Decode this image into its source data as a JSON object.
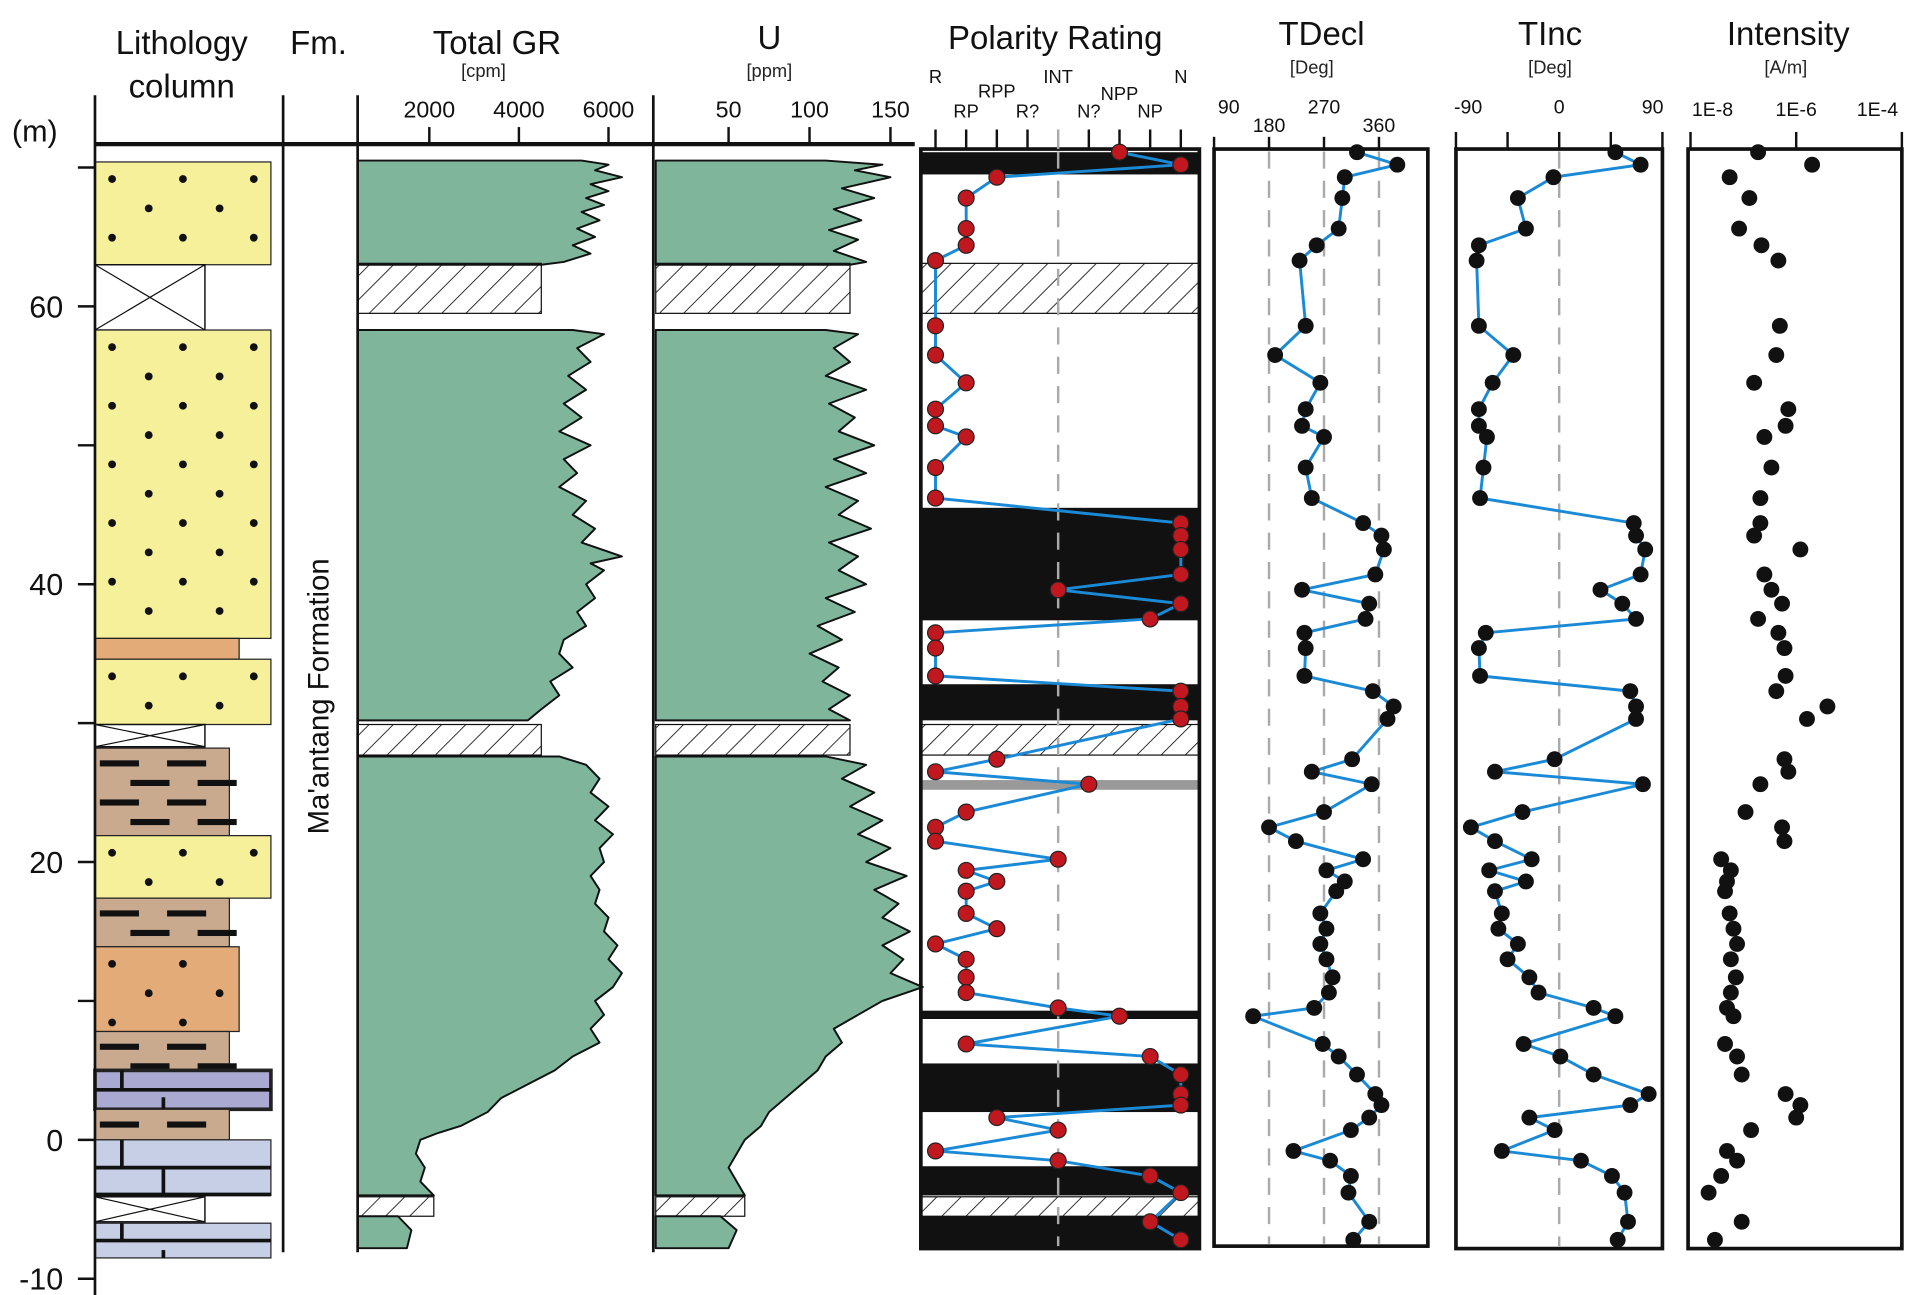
{
  "depth_axis": {
    "unit": "(m)",
    "ticks": [
      70,
      60,
      50,
      40,
      30,
      20,
      10,
      0,
      -10
    ],
    "labels": [
      "60",
      "40",
      "20",
      "0",
      "-10"
    ],
    "label_values": [
      60,
      40,
      20,
      0,
      -10
    ],
    "range": [
      -10,
      71
    ]
  },
  "columns": {
    "lithology": {
      "title_1": "Lithology",
      "title_2": "column"
    },
    "formation": {
      "title": "Fm.",
      "name": "Ma'antang Formation"
    },
    "gr": {
      "title": "Total GR",
      "unit": "[cpm]",
      "ticks": [
        "2000",
        "4000",
        "6000"
      ],
      "tick_values": [
        2000,
        4000,
        6000
      ],
      "range": [
        400,
        7000
      ]
    },
    "u": {
      "title": "U",
      "unit": "[ppm]",
      "ticks": [
        "50",
        "100",
        "150"
      ],
      "tick_values": [
        50,
        100,
        150
      ],
      "range": [
        5,
        165
      ]
    },
    "polarity": {
      "title": "Polarity Rating",
      "categories": [
        "R",
        "RP",
        "RPP",
        "R?",
        "INT",
        "N?",
        "NPP",
        "NP",
        "N"
      ]
    },
    "tdecl": {
      "title": "TDecl",
      "unit": "[Deg]",
      "ticks": [
        "90",
        "180",
        "270",
        "360"
      ],
      "tick_values": [
        90,
        180,
        270,
        360
      ],
      "range": [
        90,
        440
      ]
    },
    "tinc": {
      "title": "TInc",
      "unit": "[Deg]",
      "ticks": [
        "-90",
        "0",
        "90"
      ],
      "tick_values": [
        -90,
        0,
        90
      ],
      "range": [
        -90,
        90
      ]
    },
    "intensity": {
      "title": "Intensity",
      "unit": "[A/m]",
      "ticks": [
        "1E-8",
        "1E-6",
        "1E-4"
      ],
      "tick_values": [
        1e-08,
        1e-06,
        0.0001
      ],
      "range": [
        1e-08,
        0.0001
      ],
      "scale": "log"
    }
  },
  "colors": {
    "sandstone": "#f6f09a",
    "silty_sandstone": "#e3ab78",
    "mudstone": "#c9aa8e",
    "limestone_dark": "#a9a9d2",
    "limestone": "#c6cfe6",
    "gr_fill": "#7fb59a",
    "line": "#1a8ad6",
    "polarity_dot": "#c1181f",
    "normal_bar": "#111111",
    "transition_bar": "#999999"
  },
  "chart_data": {
    "type": "stratigraphic-log",
    "lithology": [
      {
        "type": "sandstone",
        "top": 70.4,
        "base": 63.0
      },
      {
        "type": "covered",
        "top": 63.0,
        "base": 58.3
      },
      {
        "type": "sandstone",
        "top": 58.3,
        "base": 36.1
      },
      {
        "type": "silty_sandstone",
        "top": 36.1,
        "base": 34.6
      },
      {
        "type": "sandstone",
        "top": 34.6,
        "base": 29.9
      },
      {
        "type": "covered",
        "top": 29.9,
        "base": 28.3
      },
      {
        "type": "mudstone",
        "top": 28.2,
        "base": 21.9
      },
      {
        "type": "sandstone",
        "top": 21.9,
        "base": 17.4
      },
      {
        "type": "mudstone",
        "top": 17.4,
        "base": 13.9
      },
      {
        "type": "silty_sandstone",
        "top": 13.9,
        "base": 7.8
      },
      {
        "type": "mudstone",
        "top": 7.8,
        "base": 5.0
      },
      {
        "type": "limestone_dark",
        "top": 5.0,
        "base": 2.2
      },
      {
        "type": "mudstone",
        "top": 2.2,
        "base": 0.0
      },
      {
        "type": "limestone",
        "top": 0.0,
        "base": -4.0
      },
      {
        "type": "covered",
        "top": -4.1,
        "base": -5.9
      },
      {
        "type": "limestone",
        "top": -6.0,
        "base": -8.5
      }
    ],
    "gaps": [
      [
        63.1,
        59.5
      ],
      [
        29.9,
        27.7
      ],
      [
        -4.1,
        -5.5
      ]
    ],
    "gr_segments": [
      [
        [
          70.5,
          5400
        ],
        [
          70.2,
          6000
        ],
        [
          69.8,
          5700
        ],
        [
          69.3,
          6300
        ],
        [
          68.8,
          5600
        ],
        [
          68.3,
          6000
        ],
        [
          67.8,
          5500
        ],
        [
          67.3,
          5900
        ],
        [
          66.8,
          5400
        ],
        [
          66.2,
          5800
        ],
        [
          65.6,
          5300
        ],
        [
          65.0,
          5700
        ],
        [
          64.4,
          5200
        ],
        [
          63.8,
          5600
        ],
        [
          63.2,
          5000
        ],
        [
          63.0,
          4500
        ]
      ],
      [
        [
          58.3,
          5200
        ],
        [
          58.0,
          5900
        ],
        [
          57.0,
          5300
        ],
        [
          56.0,
          5600
        ],
        [
          55.0,
          5100
        ],
        [
          54.0,
          5500
        ],
        [
          53.0,
          5000
        ],
        [
          52.0,
          5400
        ],
        [
          51.0,
          4900
        ],
        [
          50.0,
          5600
        ],
        [
          49.0,
          5000
        ],
        [
          48.0,
          5300
        ],
        [
          47.0,
          4900
        ],
        [
          46.0,
          5500
        ],
        [
          45.0,
          5200
        ],
        [
          44.0,
          5700
        ],
        [
          43.0,
          5400
        ],
        [
          42.0,
          6300
        ],
        [
          41.5,
          5600
        ],
        [
          41.0,
          5900
        ],
        [
          40.0,
          5500
        ],
        [
          39.0,
          5700
        ],
        [
          38.0,
          5300
        ],
        [
          37.0,
          5500
        ],
        [
          36.0,
          5000
        ],
        [
          35.0,
          4900
        ],
        [
          34.0,
          5200
        ],
        [
          33.0,
          4700
        ],
        [
          32.0,
          4900
        ],
        [
          31.0,
          4500
        ],
        [
          30.2,
          4200
        ]
      ],
      [
        [
          27.6,
          4900
        ],
        [
          27.0,
          5500
        ],
        [
          26.0,
          5800
        ],
        [
          25.0,
          5600
        ],
        [
          24.0,
          6000
        ],
        [
          23.0,
          5700
        ],
        [
          22.0,
          6100
        ],
        [
          21.0,
          5800
        ],
        [
          20.0,
          5900
        ],
        [
          19.0,
          5600
        ],
        [
          18.0,
          5800
        ],
        [
          17.0,
          5700
        ],
        [
          16.0,
          6000
        ],
        [
          15.0,
          5900
        ],
        [
          14.0,
          6200
        ],
        [
          13.0,
          6000
        ],
        [
          12.0,
          6300
        ],
        [
          11.0,
          6100
        ],
        [
          10.0,
          5700
        ],
        [
          9.0,
          5900
        ],
        [
          8.0,
          5600
        ],
        [
          7.0,
          5800
        ],
        [
          6.0,
          5200
        ],
        [
          5.0,
          4800
        ],
        [
          4.0,
          4200
        ],
        [
          3.0,
          3600
        ],
        [
          2.0,
          3300
        ],
        [
          1.0,
          2700
        ],
        [
          0.5,
          2200
        ],
        [
          0.0,
          1800
        ],
        [
          -1.0,
          1700
        ],
        [
          -2.0,
          1900
        ],
        [
          -3.0,
          1800
        ],
        [
          -4.0,
          2100
        ]
      ],
      [
        [
          -5.5,
          1300
        ],
        [
          -6.5,
          1600
        ],
        [
          -7.8,
          1500
        ]
      ]
    ],
    "gr_gap_values": [
      4500,
      4500,
      2100
    ],
    "u_segments": [
      [
        [
          70.5,
          110
        ],
        [
          70.2,
          145
        ],
        [
          69.8,
          128
        ],
        [
          69.3,
          150
        ],
        [
          68.5,
          120
        ],
        [
          67.8,
          140
        ],
        [
          67.0,
          115
        ],
        [
          66.2,
          132
        ],
        [
          65.5,
          112
        ],
        [
          64.8,
          130
        ],
        [
          64.0,
          115
        ],
        [
          63.2,
          135
        ],
        [
          63.0,
          125
        ]
      ],
      [
        [
          58.3,
          110
        ],
        [
          58.0,
          130
        ],
        [
          57.0,
          115
        ],
        [
          56.0,
          125
        ],
        [
          55.0,
          110
        ],
        [
          54.0,
          135
        ],
        [
          53.0,
          112
        ],
        [
          52.0,
          128
        ],
        [
          51.0,
          118
        ],
        [
          50.0,
          140
        ],
        [
          49.0,
          115
        ],
        [
          48.0,
          135
        ],
        [
          47.0,
          110
        ],
        [
          46.0,
          130
        ],
        [
          45.0,
          118
        ],
        [
          44.0,
          138
        ],
        [
          43.0,
          112
        ],
        [
          42.0,
          130
        ],
        [
          41.0,
          118
        ],
        [
          40.0,
          135
        ],
        [
          39.0,
          110
        ],
        [
          38.0,
          128
        ],
        [
          37.0,
          105
        ],
        [
          36.0,
          120
        ],
        [
          35.0,
          100
        ],
        [
          34.0,
          118
        ],
        [
          33.0,
          108
        ],
        [
          32.0,
          125
        ],
        [
          31.0,
          112
        ],
        [
          30.2,
          125
        ]
      ],
      [
        [
          27.6,
          110
        ],
        [
          27.0,
          135
        ],
        [
          26.0,
          120
        ],
        [
          25.0,
          140
        ],
        [
          24.0,
          125
        ],
        [
          23.0,
          145
        ],
        [
          22.0,
          130
        ],
        [
          21.0,
          150
        ],
        [
          20.0,
          135
        ],
        [
          19.0,
          160
        ],
        [
          18.0,
          140
        ],
        [
          17.0,
          155
        ],
        [
          16.0,
          145
        ],
        [
          15.0,
          162
        ],
        [
          14.0,
          145
        ],
        [
          13.0,
          158
        ],
        [
          12.0,
          150
        ],
        [
          11.0,
          170
        ],
        [
          10.0,
          145
        ],
        [
          9.0,
          130
        ],
        [
          8.0,
          115
        ],
        [
          7.0,
          120
        ],
        [
          6.0,
          110
        ],
        [
          5.0,
          105
        ],
        [
          4.0,
          95
        ],
        [
          3.0,
          85
        ],
        [
          2.0,
          75
        ],
        [
          1.0,
          70
        ],
        [
          0.0,
          60
        ],
        [
          -1.0,
          55
        ],
        [
          -2.0,
          50
        ],
        [
          -3.0,
          55
        ],
        [
          -4.0,
          60
        ]
      ],
      [
        [
          -5.5,
          45
        ],
        [
          -6.5,
          55
        ],
        [
          -7.8,
          50
        ]
      ]
    ],
    "u_gap_values": [
      125,
      125,
      60
    ],
    "polarity_normal_intervals": [
      [
        71.1,
        69.5
      ],
      [
        45.5,
        37.4
      ],
      [
        32.8,
        30.2
      ],
      [
        9.3,
        8.7
      ],
      [
        5.5,
        2.0
      ],
      [
        -1.9,
        -4.0
      ],
      [
        -5.5,
        -7.8
      ]
    ],
    "polarity_transition_intervals": [
      [
        25.9,
        25.2
      ]
    ],
    "sample_columns": [
      "depth_m",
      "polarity",
      "tdecl_deg",
      "tinc_deg",
      "intensity_A_per_m"
    ],
    "samples": [
      [
        71.1,
        "NPP",
        324,
        49,
        1.9e-07
      ],
      [
        70.2,
        "N",
        390,
        71,
        2e-06
      ],
      [
        69.3,
        "RPP",
        304,
        -5,
        5.5e-08
      ],
      [
        67.8,
        "RP",
        300,
        -36,
        1.3e-07
      ],
      [
        65.6,
        "RP",
        294,
        -29,
        8.3e-08
      ],
      [
        64.4,
        "RP",
        258,
        -70,
        2.2e-07
      ],
      [
        63.3,
        "R",
        230,
        -72,
        4.6e-07
      ],
      [
        58.6,
        "R",
        240,
        -70,
        4.9e-07
      ],
      [
        56.5,
        "R",
        190,
        -40,
        4.2e-07
      ],
      [
        54.5,
        "RP",
        264,
        -58,
        1.6e-07
      ],
      [
        52.6,
        "R",
        240,
        -70,
        7.1e-07
      ],
      [
        51.4,
        "R",
        234,
        -70,
        6.3e-07
      ],
      [
        50.6,
        "RP",
        270,
        -63,
        2.5e-07
      ],
      [
        48.4,
        "R",
        240,
        -66,
        3.4e-07
      ],
      [
        46.2,
        "R",
        250,
        -69,
        2.1e-07
      ],
      [
        44.4,
        "N",
        334,
        65,
        2.1e-07
      ],
      [
        43.5,
        "N",
        364,
        67,
        1.6e-07
      ],
      [
        42.5,
        "N",
        368,
        75,
        1.2e-06
      ],
      [
        40.7,
        "N",
        354,
        71,
        2.5e-07
      ],
      [
        39.6,
        "INT",
        234,
        36,
        3.4e-07
      ],
      [
        38.6,
        "N",
        344,
        55,
        5.4e-07
      ],
      [
        37.5,
        "NP",
        338,
        67,
        1.9e-07
      ],
      [
        36.5,
        "R",
        238,
        -64,
        4.6e-07
      ],
      [
        35.4,
        "R",
        240,
        -70,
        6e-07
      ],
      [
        33.4,
        "R",
        238,
        -69,
        6.3e-07
      ],
      [
        32.3,
        "N",
        350,
        62,
        4.2e-07
      ],
      [
        31.2,
        "N",
        384,
        67,
        3.9e-06
      ],
      [
        30.3,
        "N",
        374,
        67,
        1.6e-06
      ],
      [
        27.4,
        "RPP",
        316,
        -4,
        6e-07
      ],
      [
        26.5,
        "R",
        250,
        -56,
        7.1e-07
      ],
      [
        25.6,
        "N?",
        348,
        73,
        2.1e-07
      ],
      [
        23.6,
        "RP",
        270,
        -32,
        1.1e-07
      ],
      [
        22.5,
        "R",
        180,
        -77,
        5.4e-07
      ],
      [
        21.5,
        "R",
        224,
        -56,
        6e-07
      ],
      [
        20.2,
        "INT",
        334,
        -24,
        3.8e-08
      ],
      [
        19.4,
        "RP",
        274,
        -61,
        5.8e-08
      ],
      [
        18.6,
        "RPP",
        304,
        -29,
        4.9e-08
      ],
      [
        17.9,
        "RP",
        290,
        -56,
        4.5e-08
      ],
      [
        16.3,
        "RP",
        264,
        -50,
        5.5e-08
      ],
      [
        15.2,
        "RPP",
        274,
        -53,
        6.5e-08
      ],
      [
        14.1,
        "R",
        264,
        -36,
        7.6e-08
      ],
      [
        13.0,
        "RP",
        274,
        -45,
        5.8e-08
      ],
      [
        11.7,
        "RP",
        284,
        -26,
        7.2e-08
      ],
      [
        10.6,
        "RP",
        278,
        -18,
        5.8e-08
      ],
      [
        9.5,
        "INT",
        254,
        30,
        4.9e-08
      ],
      [
        8.9,
        "NPP",
        154,
        49,
        6.5e-08
      ],
      [
        6.9,
        "RP",
        268,
        -31,
        4.5e-08
      ],
      [
        6.0,
        "NP",
        294,
        1,
        7.6e-08
      ],
      [
        4.7,
        "N",
        324,
        30,
        9.3e-08
      ],
      [
        3.3,
        "N",
        354,
        78,
        6.3e-07
      ],
      [
        2.5,
        "N",
        364,
        62,
        1.2e-06
      ],
      [
        1.6,
        "RPP",
        344,
        -26,
        1e-06
      ],
      [
        0.7,
        "INT",
        314,
        -4,
        1.4e-07
      ],
      [
        -0.8,
        "R",
        220,
        -50,
        4.9e-08
      ],
      [
        -1.5,
        "INT",
        280,
        19,
        7.6e-08
      ],
      [
        -2.6,
        "NP",
        314,
        46,
        3.8e-08
      ],
      [
        -3.8,
        "N",
        310,
        57,
        2.2e-08
      ],
      [
        -5.9,
        "NP",
        344,
        60,
        9.3e-08
      ],
      [
        -7.2,
        "N",
        318,
        51,
        2.9e-08
      ]
    ]
  }
}
